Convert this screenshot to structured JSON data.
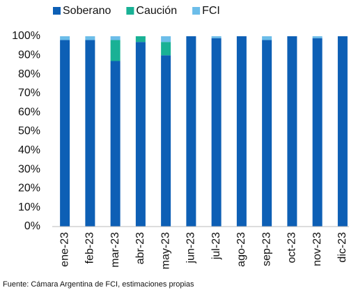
{
  "chart_data": {
    "type": "bar",
    "stacked": true,
    "categories": [
      "ene-23",
      "feb-23",
      "mar-23",
      "abr-23",
      "may-23",
      "jun-23",
      "jul-23",
      "ago-23",
      "sep-23",
      "oct-23",
      "nov-23",
      "dic-23"
    ],
    "series": [
      {
        "name": "Soberano",
        "color": "#0d5fb5",
        "values": [
          98,
          98,
          87,
          97,
          90,
          100,
          99,
          100,
          98,
          100,
          99,
          100
        ]
      },
      {
        "name": "Caución",
        "color": "#19b195",
        "values": [
          0,
          0,
          11,
          3,
          7,
          0,
          0,
          0,
          0,
          0,
          0,
          0
        ]
      },
      {
        "name": "FCI",
        "color": "#6cbde9",
        "values": [
          2,
          2,
          2,
          0,
          3,
          0,
          1,
          0,
          2,
          0,
          1,
          0
        ]
      }
    ],
    "ylim": [
      0,
      100
    ],
    "yticks": [
      {
        "value": 0,
        "label": "0%"
      },
      {
        "value": 10,
        "label": "10%"
      },
      {
        "value": 20,
        "label": "20%"
      },
      {
        "value": 30,
        "label": "30%"
      },
      {
        "value": 40,
        "label": "40%"
      },
      {
        "value": 50,
        "label": "50%"
      },
      {
        "value": 60,
        "label": "60%"
      },
      {
        "value": 70,
        "label": "70%"
      },
      {
        "value": 80,
        "label": "80%"
      },
      {
        "value": 90,
        "label": "90%"
      },
      {
        "value": 100,
        "label": "100%"
      }
    ],
    "grid": false,
    "legend": "top",
    "source": "Fuente: Cámara Argentina de FCI, estimaciones propias"
  }
}
